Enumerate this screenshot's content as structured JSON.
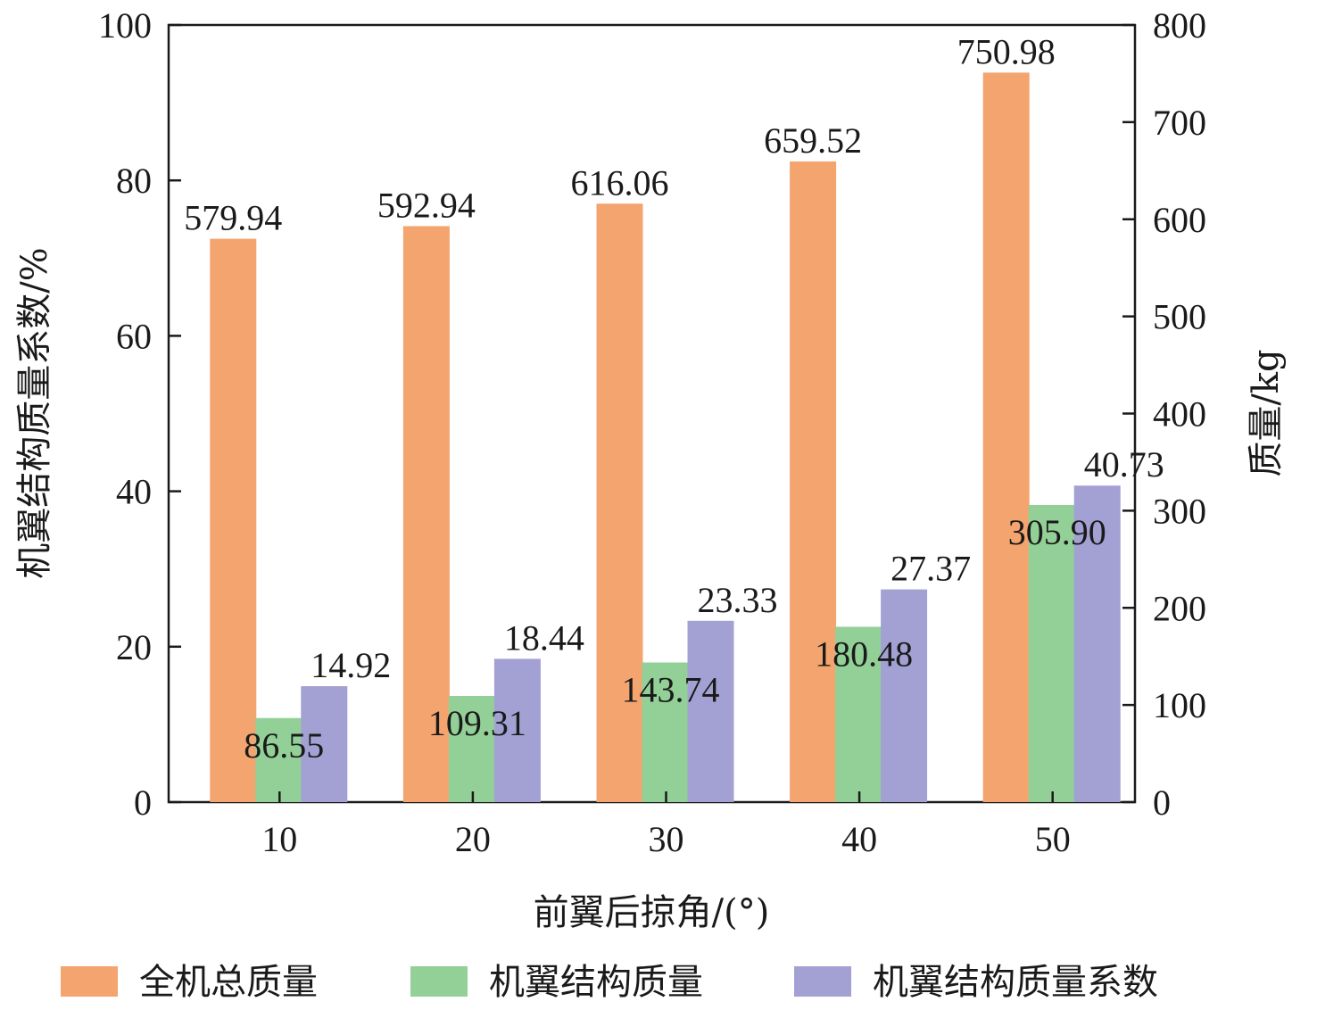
{
  "chart_data": {
    "type": "bar",
    "xlabel": "前翼后掠角/(°)",
    "ylabel_left": "机翼结构质量系数/%",
    "ylabel_right": "质量/kg",
    "categories": [
      "10",
      "20",
      "30",
      "40",
      "50"
    ],
    "ylim_left": [
      0,
      100
    ],
    "ylim_right": [
      0,
      800
    ],
    "yticks_left": [
      "0",
      "20",
      "40",
      "60",
      "80",
      "100"
    ],
    "yticks_right": [
      "0",
      "100",
      "200",
      "300",
      "400",
      "500",
      "600",
      "700",
      "800"
    ],
    "grid": false,
    "legend_position": "bottom",
    "series": [
      {
        "name": "全机总质量",
        "axis": "right",
        "color": "#F4A46E",
        "values": [
          579.94,
          592.94,
          616.06,
          659.52,
          750.98
        ],
        "labels": [
          "579.94",
          "592.94",
          "616.06",
          "659.52",
          "750.98"
        ]
      },
      {
        "name": "机翼结构质量",
        "axis": "right",
        "color": "#92D097",
        "values": [
          86.55,
          109.31,
          143.74,
          180.48,
          305.9
        ],
        "labels": [
          "86.55",
          "109.31",
          "143.74",
          "180.48",
          "305.90"
        ]
      },
      {
        "name": "机翼结构质量系数",
        "axis": "left",
        "color": "#A3A1D3",
        "values": [
          14.92,
          18.44,
          23.33,
          27.37,
          40.73
        ],
        "labels": [
          "14.92",
          "18.44",
          "23.33",
          "27.37",
          "40.73"
        ]
      }
    ]
  }
}
